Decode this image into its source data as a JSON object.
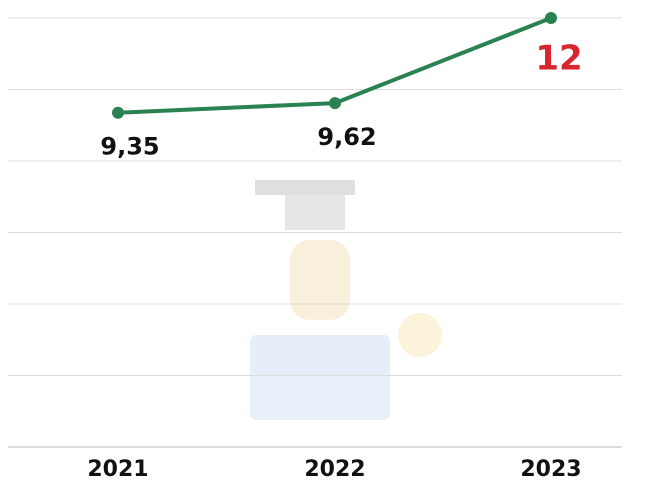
{
  "chart_data": {
    "type": "line",
    "categories": [
      "2021",
      "2022",
      "2023"
    ],
    "series": [
      {
        "color": "#2a8152",
        "values": [
          9.35,
          9.62,
          12
        ],
        "value_labels": [
          "9,35",
          "9,62",
          "12"
        ],
        "label_colors": [
          "#111111",
          "#111111",
          "#d7262e"
        ]
      }
    ],
    "ylim": [
      0,
      12
    ],
    "yticks": [
      0,
      2,
      4,
      6,
      8,
      10,
      12
    ],
    "grid": true
  }
}
